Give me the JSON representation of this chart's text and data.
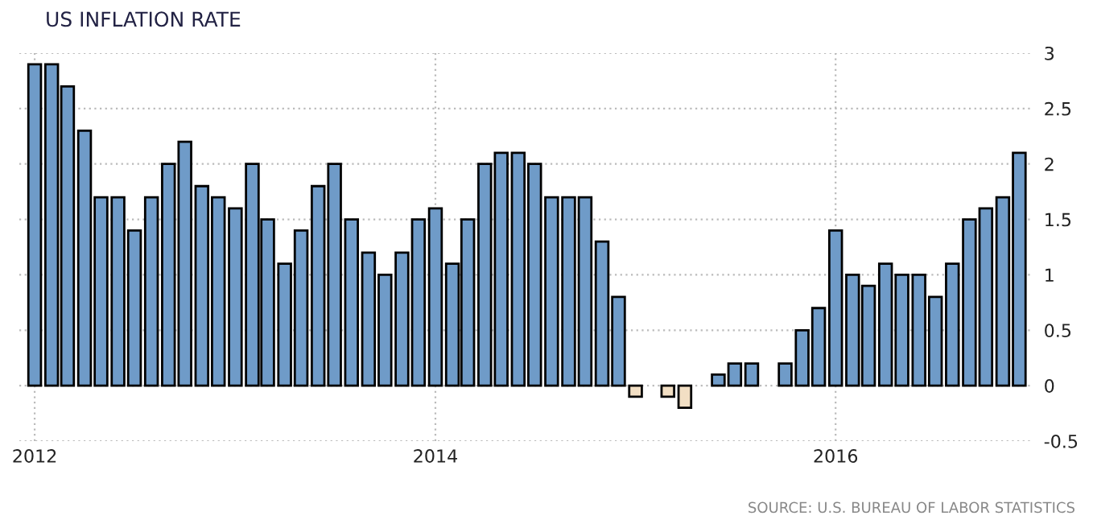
{
  "chart_data": {
    "type": "bar",
    "title": "US INFLATION RATE",
    "x": [
      "2012-01",
      "2012-02",
      "2012-03",
      "2012-04",
      "2012-05",
      "2012-06",
      "2012-07",
      "2012-08",
      "2012-09",
      "2012-10",
      "2012-11",
      "2012-12",
      "2013-01",
      "2013-02",
      "2013-03",
      "2013-04",
      "2013-05",
      "2013-06",
      "2013-07",
      "2013-08",
      "2013-09",
      "2013-10",
      "2013-11",
      "2013-12",
      "2014-01",
      "2014-02",
      "2014-03",
      "2014-04",
      "2014-05",
      "2014-06",
      "2014-07",
      "2014-08",
      "2014-09",
      "2014-10",
      "2014-11",
      "2014-12",
      "2015-01",
      "2015-02",
      "2015-03",
      "2015-04",
      "2015-05",
      "2015-06",
      "2015-07",
      "2015-08",
      "2015-09",
      "2015-10",
      "2015-11",
      "2015-12",
      "2016-01",
      "2016-02",
      "2016-03",
      "2016-04",
      "2016-05",
      "2016-06",
      "2016-07",
      "2016-08",
      "2016-09",
      "2016-10",
      "2016-11",
      "2016-12"
    ],
    "values": [
      2.9,
      2.9,
      2.7,
      2.3,
      1.7,
      1.7,
      1.4,
      1.7,
      2.0,
      2.2,
      1.8,
      1.7,
      1.6,
      2.0,
      1.5,
      1.1,
      1.4,
      1.8,
      2.0,
      1.5,
      1.2,
      1.0,
      1.2,
      1.5,
      1.6,
      1.1,
      1.5,
      2.0,
      2.1,
      2.1,
      2.0,
      1.7,
      1.7,
      1.7,
      1.3,
      0.8,
      -0.1,
      0,
      -0.1,
      -0.2,
      0,
      0.1,
      0.2,
      0.2,
      0,
      0.2,
      0.5,
      0.7,
      1.4,
      1.0,
      0.9,
      1.1,
      1.0,
      1.0,
      0.8,
      1.1,
      1.5,
      1.6,
      1.7,
      2.1
    ],
    "colors": [
      "#6f9bc8",
      "#6f9bc8",
      "#6f9bc8",
      "#6f9bc8",
      "#6f9bc8",
      "#6f9bc8",
      "#6f9bc8",
      "#6f9bc8",
      "#6f9bc8",
      "#6f9bc8",
      "#6f9bc8",
      "#6f9bc8",
      "#6f9bc8",
      "#6f9bc8",
      "#6f9bc8",
      "#6f9bc8",
      "#6f9bc8",
      "#6f9bc8",
      "#6f9bc8",
      "#6f9bc8",
      "#6f9bc8",
      "#6f9bc8",
      "#6f9bc8",
      "#6f9bc8",
      "#6f9bc8",
      "#6f9bc8",
      "#6f9bc8",
      "#6f9bc8",
      "#6f9bc8",
      "#6f9bc8",
      "#6f9bc8",
      "#6f9bc8",
      "#6f9bc8",
      "#6f9bc8",
      "#6f9bc8",
      "#6f9bc8",
      "#f2dfc4",
      "#6f9bc8",
      "#f2dfc4",
      "#f2dfc4",
      "#6f9bc8",
      "#6f9bc8",
      "#6f9bc8",
      "#6f9bc8",
      "#6f9bc8",
      "#6f9bc8",
      "#6f9bc8",
      "#6f9bc8",
      "#6f9bc8",
      "#6f9bc8",
      "#6f9bc8",
      "#6f9bc8",
      "#6f9bc8",
      "#6f9bc8",
      "#6f9bc8",
      "#6f9bc8",
      "#6f9bc8",
      "#6f9bc8",
      "#6f9bc8",
      "#6f9bc8"
    ],
    "xlim": [
      "2011-12-04",
      "2016-12-21"
    ],
    "xticks": [
      "2012",
      "2014",
      "2016"
    ],
    "ylim": [
      -0.5,
      3
    ],
    "yticks": [
      -0.5,
      0,
      0.5,
      1,
      1.5,
      2,
      2.5,
      3
    ],
    "grid": true,
    "annotations": [
      "SOURCE: U.S. BUREAU OF LABOR STATISTICS"
    ]
  }
}
